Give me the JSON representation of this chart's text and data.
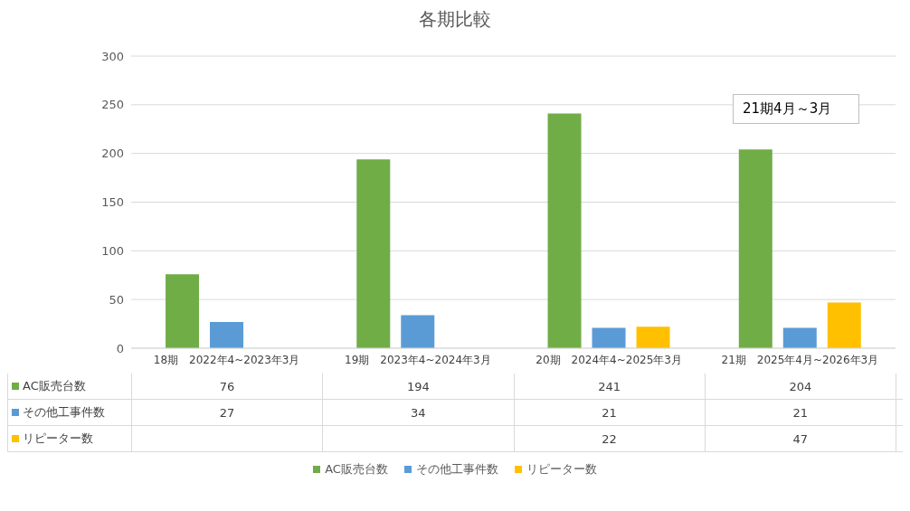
{
  "chart_data": {
    "type": "bar",
    "title": "各期比較",
    "categories": [
      "18期　2022年4~2023年3月",
      "19期　2023年4~2024年3月",
      "20期　2024年4~2025年3月",
      "21期　2025年4月~2026年3月"
    ],
    "series": [
      {
        "name": "AC販売台数",
        "color": "#70ad47",
        "values": [
          76,
          194,
          241,
          204
        ]
      },
      {
        "name": "その他工事件数",
        "color": "#5b9bd5",
        "values": [
          27,
          34,
          21,
          21
        ]
      },
      {
        "name": "リピーター数",
        "color": "#ffc000",
        "values": [
          null,
          null,
          22,
          47
        ]
      }
    ],
    "ylim": [
      0,
      300
    ],
    "yticks": [
      0,
      50,
      100,
      150,
      200,
      250,
      300
    ],
    "grid": "y",
    "legend": "bottom",
    "data_labels": true,
    "annotations": [
      "21期4月～3月"
    ]
  }
}
